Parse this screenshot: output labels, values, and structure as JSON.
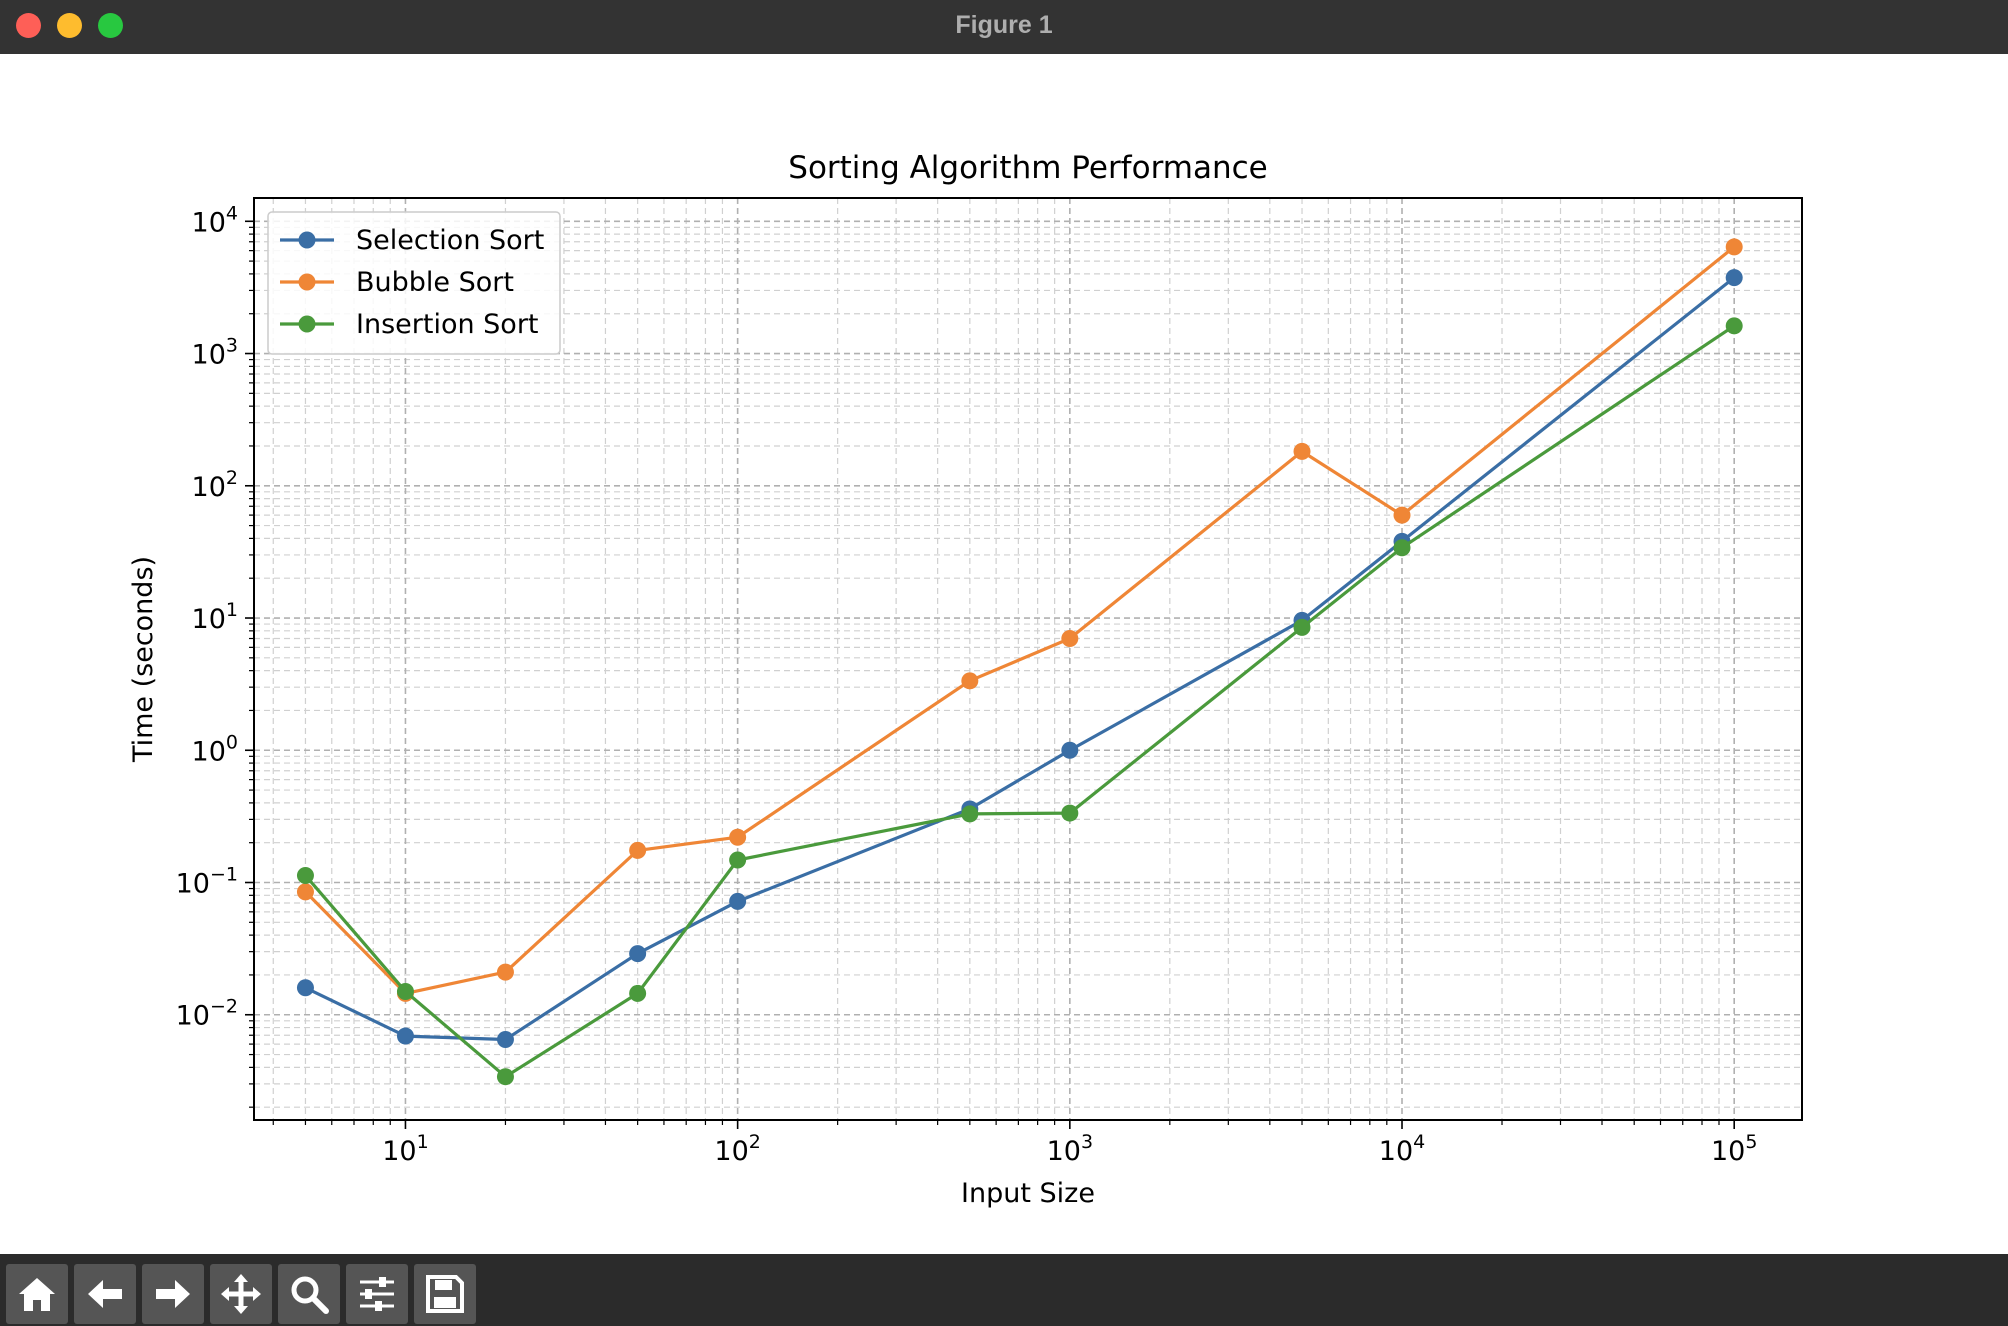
{
  "window": {
    "title": "Figure 1"
  },
  "toolbar": {
    "buttons": [
      {
        "name": "home-button",
        "icon": "home-icon"
      },
      {
        "name": "back-button",
        "icon": "back-arrow-icon"
      },
      {
        "name": "forward-button",
        "icon": "forward-arrow-icon"
      },
      {
        "name": "pan-button",
        "icon": "move-icon"
      },
      {
        "name": "zoom-button",
        "icon": "zoom-icon"
      },
      {
        "name": "configure-subplots-button",
        "icon": "sliders-icon"
      },
      {
        "name": "save-button",
        "icon": "save-icon"
      }
    ]
  },
  "chart_data": {
    "type": "line",
    "title": "Sorting Algorithm Performance",
    "xlabel": "Input Size",
    "ylabel": "Time (seconds)",
    "xscale": "log",
    "yscale": "log",
    "xlim": [
      3.5,
      160000
    ],
    "ylim": [
      0.0016,
      15000
    ],
    "grid": true,
    "legend_position": "upper left",
    "x": [
      5,
      10,
      20,
      50,
      100,
      500,
      1000,
      5000,
      10000,
      100000
    ],
    "xticks": [
      {
        "value": 10,
        "base": "10",
        "exp": "1"
      },
      {
        "value": 100,
        "base": "10",
        "exp": "2"
      },
      {
        "value": 1000,
        "base": "10",
        "exp": "3"
      },
      {
        "value": 10000,
        "base": "10",
        "exp": "4"
      },
      {
        "value": 100000,
        "base": "10",
        "exp": "5"
      }
    ],
    "yticks": [
      {
        "value": 0.01,
        "base": "10",
        "exp": "−2"
      },
      {
        "value": 0.1,
        "base": "10",
        "exp": "−1"
      },
      {
        "value": 1,
        "base": "10",
        "exp": "0"
      },
      {
        "value": 10,
        "base": "10",
        "exp": "1"
      },
      {
        "value": 100,
        "base": "10",
        "exp": "2"
      },
      {
        "value": 1000,
        "base": "10",
        "exp": "3"
      },
      {
        "value": 10000,
        "base": "10",
        "exp": "4"
      }
    ],
    "series": [
      {
        "name": "Selection Sort",
        "color": "#3a6ea5",
        "values": [
          0.016,
          0.0069,
          0.0065,
          0.029,
          0.072,
          0.36,
          1.0,
          9.6,
          38,
          3750
        ]
      },
      {
        "name": "Bubble Sort",
        "color": "#ef8636",
        "values": [
          0.085,
          0.0145,
          0.021,
          0.175,
          0.22,
          3.35,
          7.0,
          182,
          60,
          6400
        ]
      },
      {
        "name": "Insertion Sort",
        "color": "#4a9a3c",
        "values": [
          0.113,
          0.015,
          0.0034,
          0.0145,
          0.148,
          0.33,
          0.335,
          8.5,
          34,
          1620
        ]
      }
    ]
  }
}
